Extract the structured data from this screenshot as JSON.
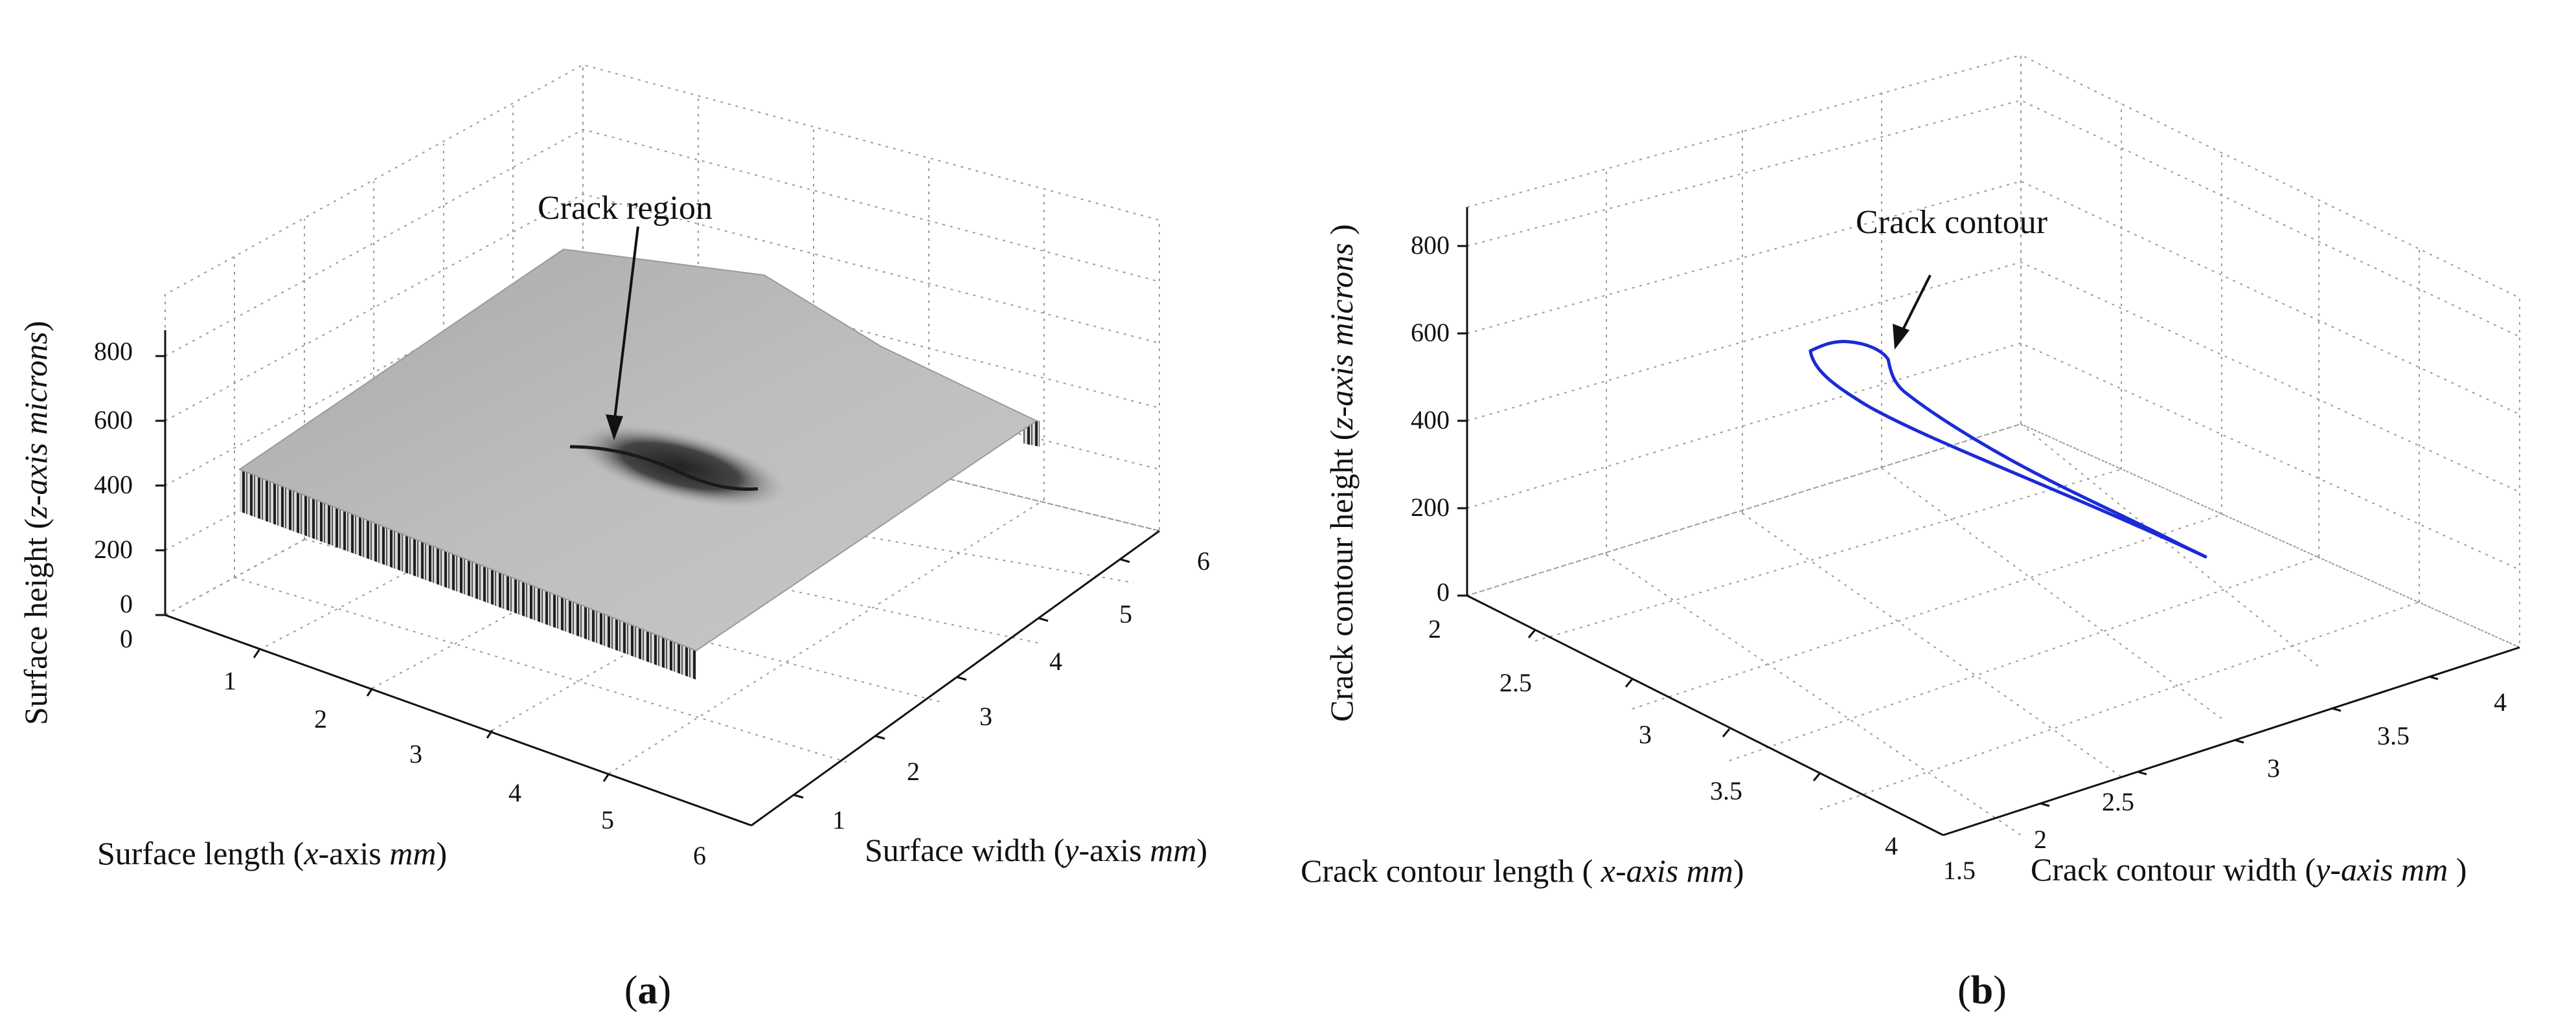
{
  "chart_data": [
    {
      "type": "surface3d",
      "panel_label": "a",
      "annotation": "Crack region",
      "xlabel": {
        "a": "Surface length (",
        "b": "x",
        "c": "-axis ",
        "d": "mm",
        "e": ")"
      },
      "ylabel": {
        "a": "Surface width (",
        "b": "y",
        "c": "-axis ",
        "d": "mm",
        "e": ")"
      },
      "zlabel": {
        "a": "Surface height (",
        "b": "z-axis microns",
        "c": ")"
      },
      "x_ticks": [
        "0",
        "1",
        "2",
        "3",
        "4",
        "5",
        "6"
      ],
      "y_ticks": [
        "1",
        "2",
        "3",
        "4",
        "5",
        "6"
      ],
      "z_ticks": [
        "0",
        "200",
        "400",
        "600",
        "800"
      ],
      "xlim": [
        0,
        6
      ],
      "ylim": [
        1,
        6
      ],
      "zlim": [
        0,
        800
      ],
      "grid": true
    },
    {
      "type": "line3d",
      "panel_label": "b",
      "annotation": "Crack contour",
      "xlabel": {
        "a": "Crack contour length ( ",
        "b": "x-axis mm",
        "c": ")"
      },
      "ylabel": {
        "a": "Crack contour width (",
        "b": "y-axis mm",
        "c": " )"
      },
      "zlabel": {
        "a": "Crack contour height (",
        "b": "z-axis microns",
        "c": " )"
      },
      "x_ticks": [
        "2",
        "2.5",
        "3",
        "3.5",
        "4"
      ],
      "y_ticks": [
        "1.5",
        "2",
        "2.5",
        "3",
        "3.5",
        "4"
      ],
      "z_ticks": [
        "0",
        "200",
        "400",
        "600",
        "800"
      ],
      "xlim": [
        2,
        4
      ],
      "ylim": [
        1.5,
        4
      ],
      "zlim": [
        0,
        800
      ],
      "grid": true,
      "line_color": "#1a2bd6"
    }
  ],
  "captions": {
    "a": "a",
    "b": "b"
  }
}
